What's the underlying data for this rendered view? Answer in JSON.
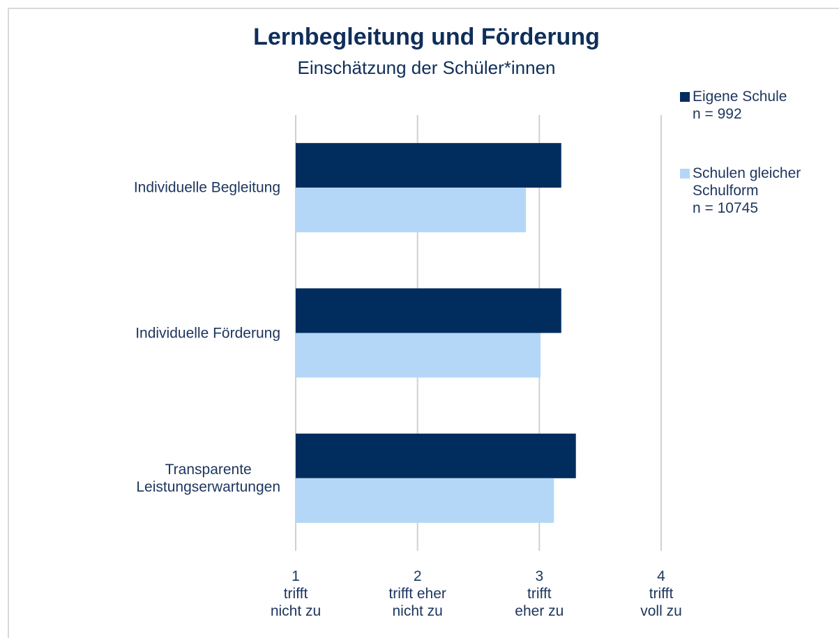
{
  "chart_data": {
    "type": "barh",
    "title": "Lernbegleitung und Förderung",
    "subtitle": "Einschätzung der Schüler*innen",
    "categories": [
      "Individuelle Begleitung",
      "Individuelle Förderung",
      "Transparente\nLeistungserwartungen"
    ],
    "series": [
      {
        "name": "Eigene Schule\nn = 992",
        "color": "#002d5e",
        "values": [
          3.18,
          3.18,
          3.3
        ]
      },
      {
        "name": "Schulen gleicher\nSchulform\nn = 10745",
        "color": "#b4d7f7",
        "values": [
          2.89,
          3.01,
          3.12
        ]
      }
    ],
    "xlim": [
      1,
      4
    ],
    "xticks": [
      {
        "value": 1,
        "label": "1\ntrifft\nnicht zu"
      },
      {
        "value": 2,
        "label": "2\ntrifft eher\nnicht zu"
      },
      {
        "value": 3,
        "label": "3\ntrifft\neher zu"
      },
      {
        "value": 4,
        "label": "4\ntrifft\nvoll zu"
      }
    ],
    "grid": true,
    "legend": "right"
  }
}
